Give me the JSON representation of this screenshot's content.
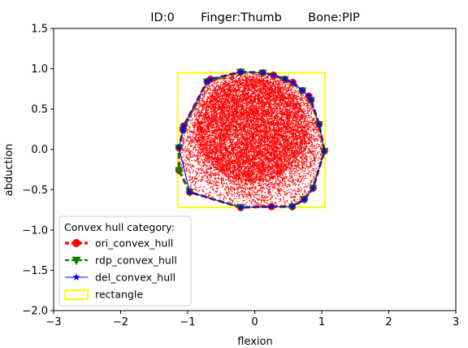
{
  "chart_data": {
    "type": "scatter",
    "title": "ID:0       Finger:Thumb       Bone:PIP",
    "xlabel": "flexion",
    "ylabel": "abduction",
    "xlim": [
      -3,
      3
    ],
    "ylim": [
      -2,
      1.5
    ],
    "xticks": [
      "−3",
      "−2",
      "−1",
      "0",
      "1",
      "2",
      "3"
    ],
    "xtick_values": [
      -3,
      -2,
      -1,
      0,
      1,
      2,
      3
    ],
    "yticks": [
      "−2.0",
      "−1.5",
      "−1.0",
      "−0.5",
      "0.0",
      "0.5",
      "1.0",
      "1.5"
    ],
    "ytick_values": [
      -2.0,
      -1.5,
      -1.0,
      -0.5,
      0.0,
      0.5,
      1.0,
      1.5
    ],
    "grid": false,
    "legend": {
      "title": "Convex hull category:",
      "placement": "lower-left"
    },
    "scatter_color": "#ff0000",
    "series": [
      {
        "name": "ori_convex_hull",
        "color": "#ff0000",
        "linestyle": "dashed",
        "marker": "circle",
        "points": [
          [
            -0.21,
            0.96
          ],
          [
            0.12,
            0.95
          ],
          [
            0.28,
            0.92
          ],
          [
            0.45,
            0.87
          ],
          [
            0.57,
            0.83
          ],
          [
            0.71,
            0.73
          ],
          [
            0.81,
            0.66
          ],
          [
            0.84,
            0.61
          ],
          [
            0.96,
            0.31
          ],
          [
            1.04,
            -0.02
          ],
          [
            0.87,
            -0.48
          ],
          [
            0.74,
            -0.62
          ],
          [
            0.56,
            -0.71
          ],
          [
            0.25,
            -0.71
          ],
          [
            -0.21,
            -0.72
          ],
          [
            -0.97,
            -0.53
          ],
          [
            -1.13,
            -0.26
          ],
          [
            -1.13,
            0.02
          ],
          [
            -1.07,
            0.24
          ],
          [
            -1.06,
            0.29
          ],
          [
            -0.71,
            0.84
          ],
          [
            -0.66,
            0.87
          ],
          [
            -0.21,
            0.96
          ]
        ]
      },
      {
        "name": "rdp_convex_hull",
        "color": "#008000",
        "linestyle": "dashed",
        "marker": "triangle-down",
        "points": [
          [
            -0.21,
            0.96
          ],
          [
            0.12,
            0.95
          ],
          [
            0.45,
            0.87
          ],
          [
            0.71,
            0.73
          ],
          [
            0.84,
            0.61
          ],
          [
            0.96,
            0.31
          ],
          [
            1.04,
            -0.02
          ],
          [
            0.87,
            -0.48
          ],
          [
            0.74,
            -0.62
          ],
          [
            0.56,
            -0.71
          ],
          [
            -0.21,
            -0.72
          ],
          [
            -0.97,
            -0.53
          ],
          [
            -1.13,
            -0.26
          ],
          [
            -1.13,
            0.02
          ],
          [
            -1.07,
            0.24
          ],
          [
            -0.71,
            0.84
          ],
          [
            -0.21,
            0.96
          ]
        ]
      },
      {
        "name": "del_convex_hull",
        "color": "#0000ff",
        "linestyle": "solid",
        "marker": "star",
        "points": [
          [
            -0.21,
            0.96
          ],
          [
            0.12,
            0.95
          ],
          [
            0.28,
            0.92
          ],
          [
            0.45,
            0.87
          ],
          [
            0.57,
            0.83
          ],
          [
            0.71,
            0.73
          ],
          [
            0.81,
            0.66
          ],
          [
            0.84,
            0.61
          ],
          [
            0.96,
            0.31
          ],
          [
            1.04,
            -0.02
          ],
          [
            0.87,
            -0.48
          ],
          [
            0.74,
            -0.62
          ],
          [
            0.56,
            -0.71
          ],
          [
            0.25,
            -0.71
          ],
          [
            -0.21,
            -0.72
          ],
          [
            -0.97,
            -0.53
          ],
          [
            -1.13,
            0.02
          ],
          [
            -1.07,
            0.24
          ],
          [
            -1.06,
            0.29
          ],
          [
            -0.71,
            0.84
          ],
          [
            -0.66,
            0.87
          ],
          [
            -0.21,
            0.96
          ]
        ]
      },
      {
        "name": "rectangle",
        "color": "#ffff00",
        "linestyle": "solid",
        "marker": "none",
        "points": [
          [
            -1.15,
            -0.72
          ],
          [
            1.05,
            -0.72
          ],
          [
            1.05,
            0.95
          ],
          [
            -1.15,
            0.95
          ],
          [
            -1.15,
            -0.72
          ]
        ]
      }
    ]
  }
}
